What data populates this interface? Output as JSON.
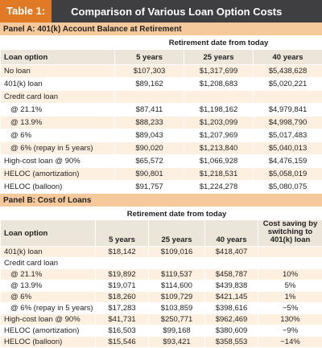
{
  "header": {
    "label": "Table 1:",
    "title": "Comparison of Various Loan Option Costs"
  },
  "panels": [
    {
      "title": "Panel A: 401(k) Account Balance at Retirement",
      "group_header": "Retirement date from today",
      "columns": [
        "Loan option",
        "5 years",
        "25 years",
        "40 years"
      ],
      "rows": [
        [
          "No loan",
          "$107,303",
          "$1,317,699",
          "$5,438,628"
        ],
        [
          "401(k) loan",
          "$89,162",
          "$1,208,683",
          "$5,020,221"
        ],
        [
          "Credit card loan"
        ],
        [
          "@ 21.1%",
          "$87,411",
          "$1,198,162",
          "$4,979,841"
        ],
        [
          "@ 13.9%",
          "$88,233",
          "$1,203,099",
          "$4,998,790"
        ],
        [
          "@ 6%",
          "$89,043",
          "$1,207,969",
          "$5,017,483"
        ],
        [
          "@ 6% (repay in 5 years)",
          "$90,020",
          "$1,213,840",
          "$5,040,013"
        ],
        [
          "High-cost loan @ 90%",
          "$65,572",
          "$1,066,928",
          "$4,476,159"
        ],
        [
          "HELOC (amortization)",
          "$90,801",
          "$1,218,531",
          "$5,058,019"
        ],
        [
          "HELOC (balloon)",
          "$91,757",
          "$1,224,278",
          "$5,080,075"
        ]
      ]
    },
    {
      "title": "Panel B: Cost of Loans",
      "group_header": "Retirement date from today",
      "columns": [
        "Loan option",
        "5 years",
        "25 years",
        "40 years",
        "Cost saving by switching to 401(k) loan"
      ],
      "rows": [
        [
          "401(k) loan",
          "$18,142",
          "$109,016",
          "$418,407"
        ],
        [
          "Credit card loan"
        ],
        [
          "@ 21.1%",
          "$19,892",
          "$119,537",
          "$458,787",
          "10%"
        ],
        [
          "@ 13.9%",
          "$19,071",
          "$114,600",
          "$439,838",
          "5%"
        ],
        [
          "@ 6%",
          "$18,260",
          "$109,729",
          "$421,145",
          "1%"
        ],
        [
          "@ 6% (repay in 5 years)",
          "$17,283",
          "$103,859",
          "$398,616",
          "−5%"
        ],
        [
          "High-cost loan @ 90%",
          "$41,731",
          "$250,771",
          "$962,469",
          "130%"
        ],
        [
          "HELOC (amortization)",
          "$16,503",
          "$99,168",
          "$380,609",
          "−9%"
        ],
        [
          "HELOC (balloon)",
          "$15,546",
          "$93,421",
          "$358,553",
          "−14%"
        ]
      ]
    }
  ]
}
